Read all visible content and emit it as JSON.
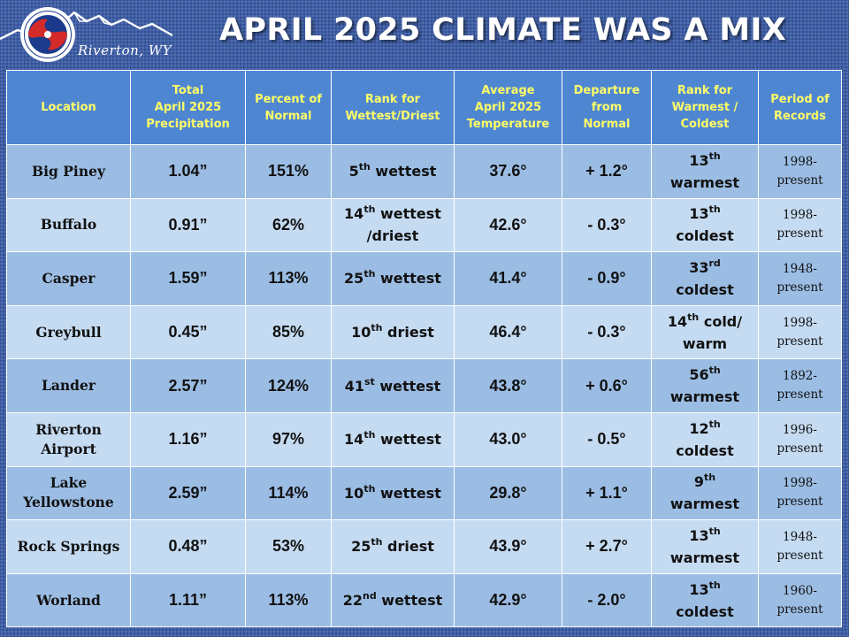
{
  "header": {
    "logo_location": "Riverton, WY",
    "title": "APRIL 2025 CLIMATE WAS A MIX"
  },
  "table": {
    "columns": [
      {
        "line1": "Location"
      },
      {
        "line1": "Total",
        "line2": "April 2025",
        "line3": "Precipitation"
      },
      {
        "line1": "Percent of",
        "line2": "Normal"
      },
      {
        "line1": "Rank for",
        "line2": "Wettest/Driest"
      },
      {
        "line1": "Average",
        "line2": "April 2025",
        "line3": "Temperature"
      },
      {
        "line1": "Departure",
        "line2": "from",
        "line3": "Normal"
      },
      {
        "line1": "Rank for",
        "line2": "Warmest /",
        "line3": "Coldest"
      },
      {
        "line1": "Period of",
        "line2": "Records"
      }
    ],
    "rows": [
      {
        "loc1": "Big Piney",
        "precip": "1.04”",
        "pct": "151%",
        "wd_num": "5",
        "wd_sup": "th",
        "wd_text": " wettest",
        "wd_line2": "",
        "temp": "37.6°",
        "dep": "+ 1.2°",
        "wc_num": "13",
        "wc_sup": "th",
        "wc_text": "",
        "wc_line2": "warmest",
        "por1": "1998-",
        "por2": "present"
      },
      {
        "loc1": "Buffalo",
        "precip": "0.91”",
        "pct": "62%",
        "wd_num": "14",
        "wd_sup": "th",
        "wd_text": " wettest",
        "wd_line2": "/driest",
        "temp": "42.6°",
        "dep": "- 0.3°",
        "wc_num": "13",
        "wc_sup": "th",
        "wc_text": "",
        "wc_line2": "coldest",
        "por1": "1998-",
        "por2": "present"
      },
      {
        "loc1": "Casper",
        "precip": "1.59”",
        "pct": "113%",
        "wd_num": "25",
        "wd_sup": "th",
        "wd_text": " wettest",
        "wd_line2": "",
        "temp": "41.4°",
        "dep": "- 0.9°",
        "wc_num": "33",
        "wc_sup": "rd",
        "wc_text": "",
        "wc_line2": "coldest",
        "por1": "1948-",
        "por2": "present"
      },
      {
        "loc1": "Greybull",
        "precip": "0.45”",
        "pct": "85%",
        "wd_num": "10",
        "wd_sup": "th",
        "wd_text": " driest",
        "wd_line2": "",
        "temp": "46.4°",
        "dep": "- 0.3°",
        "wc_num": "14",
        "wc_sup": "th",
        "wc_text": " cold/",
        "wc_line2": "warm",
        "por1": "1998-",
        "por2": "present"
      },
      {
        "loc1": "Lander",
        "precip": "2.57”",
        "pct": "124%",
        "wd_num": "41",
        "wd_sup": "st",
        "wd_text": " wettest",
        "wd_line2": "",
        "temp": "43.8°",
        "dep": "+ 0.6°",
        "wc_num": "56",
        "wc_sup": "th",
        "wc_text": "",
        "wc_line2": "warmest",
        "por1": "1892-",
        "por2": "present"
      },
      {
        "loc1": "Riverton",
        "loc2": "Airport",
        "precip": "1.16”",
        "pct": "97%",
        "wd_num": "14",
        "wd_sup": "th",
        "wd_text": " wettest",
        "wd_line2": "",
        "temp": "43.0°",
        "dep": "- 0.5°",
        "wc_num": "12",
        "wc_sup": "th",
        "wc_text": "",
        "wc_line2": "coldest",
        "por1": "1996-",
        "por2": "present"
      },
      {
        "loc1": "Lake",
        "loc2": "Yellowstone",
        "precip": "2.59”",
        "pct": "114%",
        "wd_num": "10",
        "wd_sup": "th",
        "wd_text": " wettest",
        "wd_line2": "",
        "temp": "29.8°",
        "dep": "+ 1.1°",
        "wc_num": "9",
        "wc_sup": "th",
        "wc_text": "",
        "wc_line2": "warmest",
        "por1": "1998-",
        "por2": "present"
      },
      {
        "loc1": "Rock Springs",
        "precip": "0.48”",
        "pct": "53%",
        "wd_num": "25",
        "wd_sup": "th",
        "wd_text": " driest",
        "wd_line2": "",
        "temp": "43.9°",
        "dep": "+ 2.7°",
        "wc_num": "13",
        "wc_sup": "th",
        "wc_text": "",
        "wc_line2": "warmest",
        "por1": "1948-",
        "por2": "present"
      },
      {
        "loc1": "Worland",
        "precip": "1.11”",
        "pct": "113%",
        "wd_num": "22",
        "wd_sup": "nd",
        "wd_text": " wettest",
        "wd_line2": "",
        "temp": "42.9°",
        "dep": "- 2.0°",
        "wc_num": "13",
        "wc_sup": "th",
        "wc_text": "",
        "wc_line2": "coldest",
        "por1": "1960-",
        "por2": "present"
      }
    ]
  }
}
